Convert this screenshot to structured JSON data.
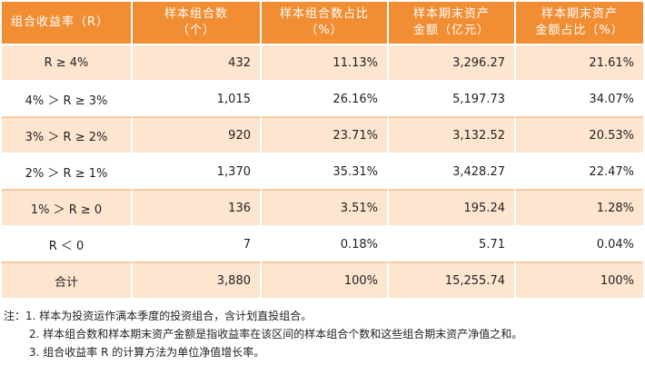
{
  "table": {
    "headers": [
      [
        "组合收益率（R）"
      ],
      [
        "样本组合数",
        "（个）"
      ],
      [
        "样本组合数占比",
        "（%）"
      ],
      [
        "样本期末资产",
        "金额（亿元）"
      ],
      [
        "样本期末资产",
        "金额占比（%）"
      ]
    ],
    "rows": [
      [
        "R ≥ 4%",
        "432",
        "11.13%",
        "3,296.27",
        "21.61%"
      ],
      [
        "4% ＞ R ≥ 3%",
        "1,015",
        "26.16%",
        "5,197.73",
        "34.07%"
      ],
      [
        "3% ＞ R ≥ 2%",
        "920",
        "23.71%",
        "3,132.52",
        "20.53%"
      ],
      [
        "2% ＞ R ≥ 1%",
        "1,370",
        "35.31%",
        "3,428.27",
        "22.47%"
      ],
      [
        "1% ＞ R ≥ 0",
        "136",
        "3.51%",
        "195.24",
        "1.28%"
      ],
      [
        "R ＜ 0",
        "7",
        "0.18%",
        "5.71",
        "0.04%"
      ],
      [
        "合计",
        "3,880",
        "100%",
        "15,255.74",
        "100%"
      ]
    ]
  },
  "notes": [
    "注：1. 样本为投资运作满本季度的投资组合，含计划直投组合。",
    "2. 样本组合数和样本期末资产金额是指收益率在该区间的样本组合个数和这些组合期末资产净值之和。",
    "3. 组合收益率 R 的计算方法为单位净值增长率。"
  ],
  "colors": {
    "header": "#f18e34",
    "band": "#fde5d0",
    "text": "#231f20"
  }
}
